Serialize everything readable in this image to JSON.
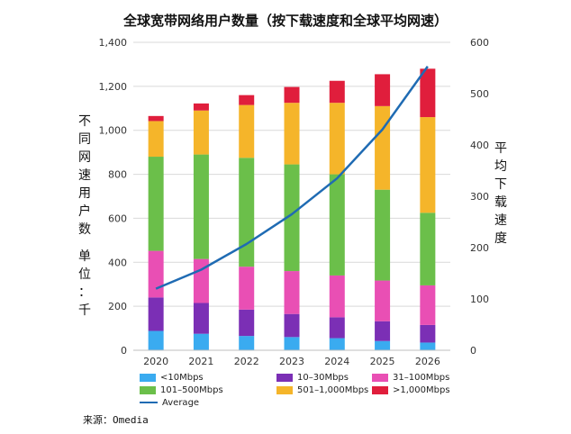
{
  "title": "全球宽带网络用户数量（按下载速度和全球平均网速）",
  "source": "来源：Omedia",
  "chart_data": {
    "type": "bar",
    "stacked": true,
    "title": "全球宽带网络用户数量（按下载速度和全球平均网速）",
    "ylabel": "不同网速用户数 单位：千",
    "y2label": "平均下载速度",
    "categories": [
      "2020",
      "2021",
      "2022",
      "2023",
      "2024",
      "2025",
      "2026"
    ],
    "ylim": [
      0,
      1400
    ],
    "yticks": [
      "0",
      "200",
      "400",
      "600",
      "800",
      "1,000",
      "1,200",
      "1,400"
    ],
    "y2lim": [
      0,
      600
    ],
    "y2ticks": [
      "0",
      "100",
      "200",
      "300",
      "400",
      "500",
      "600"
    ],
    "grid": true,
    "legend_position": "bottom",
    "series": [
      {
        "name": "<10Mbps",
        "color": "#3aabf0",
        "values": [
          88,
          75,
          65,
          60,
          55,
          42,
          35
        ]
      },
      {
        "name": "10–30Mbps",
        "color": "#7b2fb5",
        "values": [
          152,
          140,
          120,
          105,
          95,
          90,
          80
        ]
      },
      {
        "name": "31–100Mbps",
        "color": "#e94fb4",
        "values": [
          212,
          200,
          195,
          195,
          190,
          185,
          180
        ]
      },
      {
        "name": "101–500Mbps",
        "color": "#6bbf4a",
        "values": [
          428,
          475,
          495,
          485,
          460,
          413,
          330
        ]
      },
      {
        "name": "501–1,000Mbps",
        "color": "#f5b52a",
        "values": [
          162,
          200,
          240,
          280,
          325,
          380,
          435
        ]
      },
      {
        "name": ">1,000Mbps",
        "color": "#e01e3c",
        "values": [
          23,
          32,
          45,
          72,
          100,
          145,
          220
        ]
      }
    ],
    "line": {
      "name": "Average",
      "color": "#1f6bb3",
      "axis": "right",
      "values": [
        120,
        157,
        207,
        265,
        335,
        430,
        553
      ]
    }
  }
}
